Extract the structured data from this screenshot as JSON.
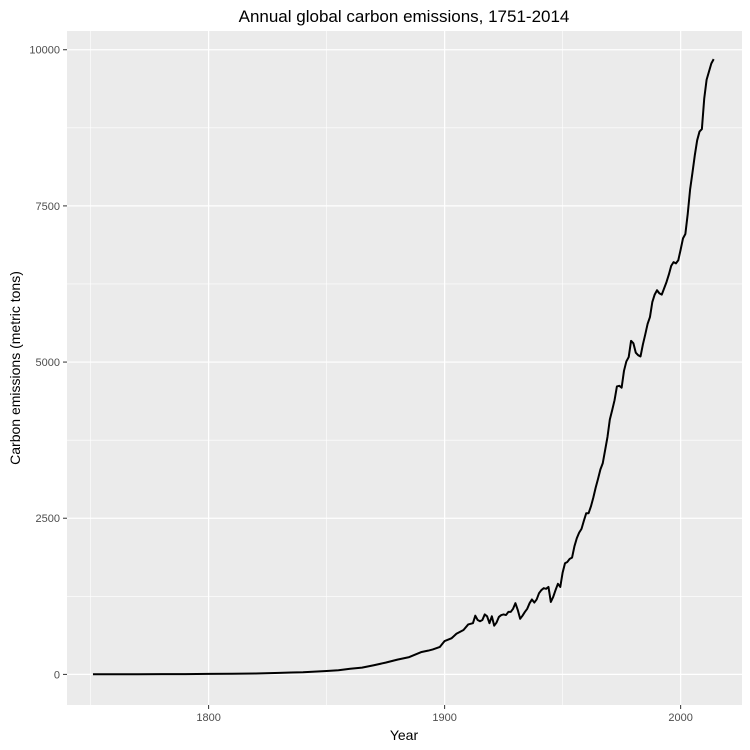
{
  "chart_data": {
    "type": "line",
    "title": "Annual global carbon emissions, 1751-2014",
    "xlabel": "Year",
    "ylabel": "Carbon emissions (metric tons)",
    "xlim": [
      1740,
      2026
    ],
    "ylim": [
      -490,
      10300
    ],
    "x_ticks": [
      1800,
      1900,
      2000
    ],
    "x_tick_labels": [
      "1800",
      "1900",
      "2000"
    ],
    "x_minor_ticks": [
      1750,
      1850,
      1950
    ],
    "y_ticks": [
      0,
      2500,
      5000,
      7500,
      10000
    ],
    "y_tick_labels": [
      "0",
      "2500",
      "5000",
      "7500",
      "10000"
    ],
    "y_minor_ticks": [
      1250,
      3750,
      6250,
      8750
    ],
    "grid": true,
    "colors": {
      "panel": "#ebebeb",
      "grid": "#ffffff",
      "line": "#000000"
    },
    "series": [
      {
        "x": [
          1751,
          1760,
          1770,
          1780,
          1790,
          1800,
          1810,
          1820,
          1830,
          1835,
          1840,
          1845,
          1850,
          1855,
          1860,
          1865,
          1870,
          1875,
          1880,
          1885,
          1890,
          1893,
          1895,
          1898,
          1900,
          1903,
          1905,
          1908,
          1910,
          1912,
          1913,
          1914,
          1915,
          1916,
          1917,
          1918,
          1919,
          1920,
          1921,
          1922,
          1923,
          1924,
          1925,
          1926,
          1927,
          1928,
          1929,
          1930,
          1931,
          1932,
          1933,
          1934,
          1935,
          1936,
          1937,
          1938,
          1939,
          1940,
          1941,
          1942,
          1943,
          1944,
          1945,
          1946,
          1947,
          1948,
          1949,
          1950,
          1951,
          1952,
          1953,
          1954,
          1955,
          1956,
          1957,
          1958,
          1959,
          1960,
          1961,
          1962,
          1963,
          1964,
          1965,
          1966,
          1967,
          1968,
          1969,
          1970,
          1971,
          1972,
          1973,
          1974,
          1975,
          1976,
          1977,
          1978,
          1979,
          1980,
          1981,
          1982,
          1983,
          1984,
          1985,
          1986,
          1987,
          1988,
          1989,
          1990,
          1991,
          1992,
          1993,
          1994,
          1995,
          1996,
          1997,
          1998,
          1999,
          2000,
          2001,
          2002,
          2003,
          2004,
          2005,
          2006,
          2007,
          2008,
          2009,
          2010,
          2011,
          2012,
          2013,
          2014
        ],
        "y": [
          3,
          3,
          3,
          4,
          5,
          8,
          10,
          14,
          24,
          30,
          35,
          45,
          54,
          66,
          91,
          108,
          147,
          188,
          236,
          277,
          356,
          380,
          400,
          440,
          534,
          580,
          650,
          710,
          800,
          820,
          940,
          870,
          850,
          870,
          960,
          930,
          820,
          930,
          780,
          830,
          920,
          950,
          960,
          950,
          1000,
          1000,
          1050,
          1140,
          1030,
          890,
          940,
          1000,
          1050,
          1140,
          1200,
          1150,
          1200,
          1300,
          1350,
          1380,
          1370,
          1400,
          1160,
          1240,
          1350,
          1450,
          1400,
          1630,
          1780,
          1800,
          1850,
          1870,
          2050,
          2180,
          2270,
          2330,
          2460,
          2580,
          2580,
          2690,
          2830,
          2990,
          3130,
          3280,
          3380,
          3590,
          3800,
          4080,
          4230,
          4390,
          4610,
          4620,
          4590,
          4860,
          5010,
          5080,
          5340,
          5300,
          5150,
          5110,
          5090,
          5280,
          5440,
          5610,
          5720,
          5960,
          6080,
          6150,
          6100,
          6080,
          6180,
          6280,
          6400,
          6540,
          6600,
          6580,
          6630,
          6800,
          6980,
          7050,
          7370,
          7760,
          8030,
          8310,
          8550,
          8690,
          8730,
          9220,
          9520,
          9650,
          9780,
          9850
        ]
      }
    ]
  }
}
